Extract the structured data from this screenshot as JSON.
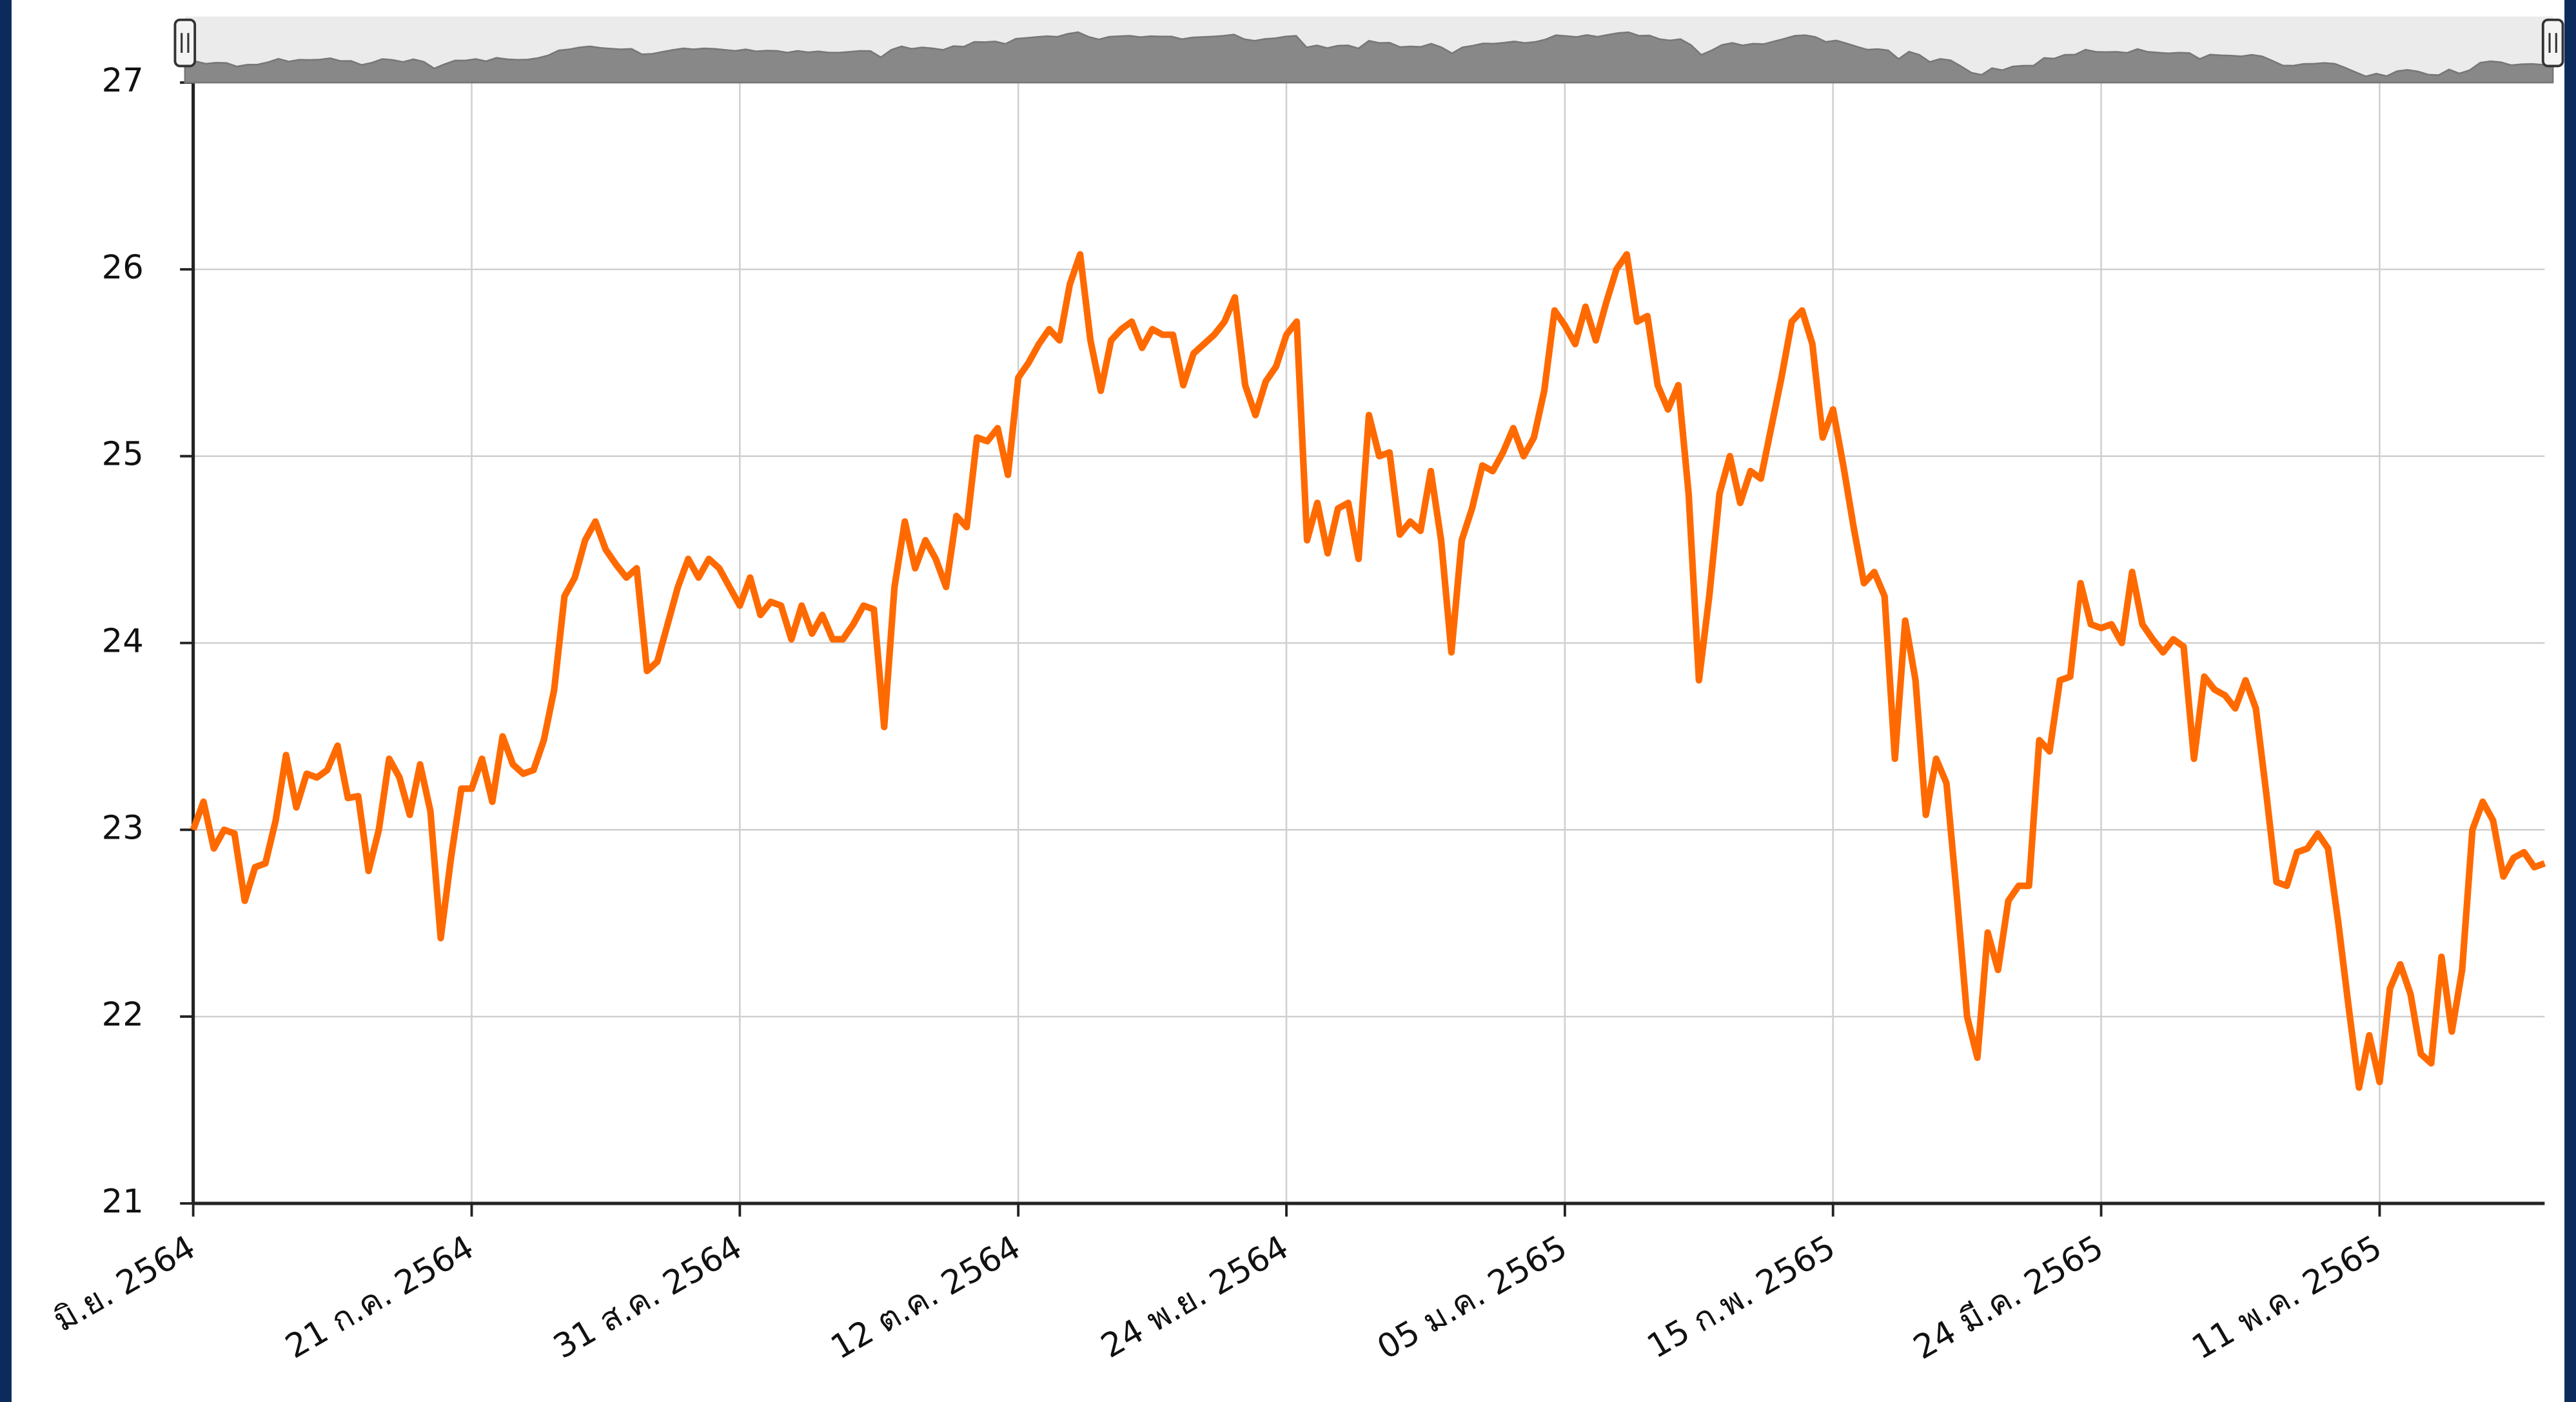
{
  "chart_data": {
    "type": "line",
    "color": "#ff6a00",
    "ylim": [
      21,
      27
    ],
    "yticks": [
      21,
      22,
      23,
      24,
      25,
      26,
      27
    ],
    "grid": true,
    "categories": [
      "มิ.ย. 2564",
      null,
      null,
      null,
      null,
      null,
      null,
      null,
      null,
      null,
      null,
      null,
      null,
      null,
      null,
      null,
      null,
      null,
      null,
      null,
      null,
      null,
      null,
      null,
      null,
      null,
      null,
      "21 ก.ค. 2564",
      null,
      null,
      null,
      null,
      null,
      null,
      null,
      null,
      null,
      null,
      null,
      null,
      null,
      null,
      null,
      null,
      null,
      null,
      null,
      null,
      null,
      null,
      null,
      null,
      null,
      "31 ส.ค. 2564",
      null,
      null,
      null,
      null,
      null,
      null,
      null,
      null,
      null,
      null,
      null,
      null,
      null,
      null,
      null,
      null,
      null,
      null,
      null,
      null,
      null,
      null,
      null,
      null,
      null,
      null,
      "12 ต.ค. 2564",
      null,
      null,
      null,
      null,
      null,
      null,
      null,
      null,
      null,
      null,
      null,
      null,
      null,
      null,
      null,
      null,
      null,
      null,
      null,
      null,
      null,
      null,
      null,
      null,
      null,
      "24 พ.ย. 2564",
      null,
      null,
      null,
      null,
      null,
      null,
      null,
      null,
      null,
      null,
      null,
      null,
      null,
      null,
      null,
      null,
      null,
      null,
      null,
      null,
      null,
      null,
      null,
      null,
      null,
      null,
      "05 ม.ค. 2565",
      null,
      null,
      null,
      null,
      null,
      null,
      null,
      null,
      null,
      null,
      null,
      null,
      null,
      null,
      null,
      null,
      null,
      null,
      null,
      null,
      null,
      null,
      null,
      null,
      null,
      "15 ก.พ. 2565",
      null,
      null,
      null,
      null,
      null,
      null,
      null,
      null,
      null,
      null,
      null,
      null,
      null,
      null,
      null,
      null,
      null,
      null,
      null,
      null,
      null,
      null,
      null,
      null,
      null,
      "24 มี.ค. 2565",
      null,
      null,
      null,
      null,
      null,
      null,
      null,
      null,
      null,
      null,
      null,
      null,
      null,
      null,
      null,
      null,
      null,
      null,
      null,
      null,
      null,
      null,
      null,
      null,
      null,
      null,
      "11 พ.ค. 2565",
      null,
      null,
      null,
      null,
      null,
      null,
      null,
      null,
      null,
      null,
      null,
      null,
      null,
      null,
      null,
      null
    ],
    "values": [
      23.0,
      23.15,
      22.9,
      23.0,
      22.98,
      22.62,
      22.8,
      22.82,
      23.05,
      23.4,
      23.12,
      23.3,
      23.28,
      23.32,
      23.45,
      23.17,
      23.18,
      22.78,
      23.0,
      23.38,
      23.28,
      23.08,
      23.35,
      23.1,
      22.42,
      22.85,
      23.22,
      23.22,
      23.38,
      23.15,
      23.5,
      23.35,
      23.3,
      23.32,
      23.48,
      23.75,
      24.25,
      24.35,
      24.55,
      24.65,
      24.5,
      24.42,
      24.35,
      24.4,
      23.85,
      23.9,
      24.1,
      24.3,
      24.45,
      24.35,
      24.45,
      24.4,
      24.3,
      24.2,
      24.35,
      24.15,
      24.22,
      24.2,
      24.02,
      24.2,
      24.05,
      24.15,
      24.02,
      24.02,
      24.1,
      24.2,
      24.18,
      23.55,
      24.3,
      24.65,
      24.4,
      24.55,
      24.45,
      24.3,
      24.68,
      24.62,
      25.1,
      25.08,
      25.15,
      24.9,
      25.42,
      25.5,
      25.6,
      25.68,
      25.62,
      25.92,
      26.08,
      25.62,
      25.35,
      25.62,
      25.68,
      25.72,
      25.58,
      25.68,
      25.65,
      25.65,
      25.38,
      25.55,
      25.6,
      25.65,
      25.72,
      25.85,
      25.38,
      25.22,
      25.4,
      25.48,
      25.65,
      25.72,
      24.55,
      24.75,
      24.48,
      24.72,
      24.75,
      24.45,
      25.22,
      25.0,
      25.02,
      24.58,
      24.65,
      24.6,
      24.92,
      24.55,
      23.95,
      24.55,
      24.72,
      24.95,
      24.92,
      25.02,
      25.15,
      25.0,
      25.1,
      25.35,
      25.78,
      25.7,
      25.6,
      25.8,
      25.62,
      25.82,
      26.0,
      26.08,
      25.72,
      25.75,
      25.38,
      25.25,
      25.38,
      24.8,
      23.8,
      24.25,
      24.8,
      25.0,
      24.75,
      24.92,
      24.88,
      25.15,
      25.42,
      25.72,
      25.78,
      25.6,
      25.1,
      25.25,
      24.95,
      24.62,
      24.32,
      24.38,
      24.25,
      23.38,
      24.12,
      23.8,
      23.08,
      23.38,
      23.25,
      22.65,
      22.0,
      21.78,
      22.45,
      22.25,
      22.62,
      22.7,
      22.7,
      23.48,
      23.42,
      23.8,
      23.82,
      24.32,
      24.1,
      24.08,
      24.1,
      24.0,
      24.38,
      24.1,
      24.02,
      23.95,
      24.02,
      23.98,
      23.38,
      23.82,
      23.75,
      23.72,
      23.65,
      23.8,
      23.65,
      23.2,
      22.72,
      22.7,
      22.88,
      22.9,
      22.98,
      22.9,
      22.5,
      22.05,
      21.62,
      21.9,
      21.65,
      22.15,
      22.28,
      22.12,
      21.8,
      21.75,
      22.32,
      21.92,
      22.25,
      23.0,
      23.15,
      23.05,
      22.75,
      22.85,
      22.88,
      22.8,
      22.82
    ]
  }
}
